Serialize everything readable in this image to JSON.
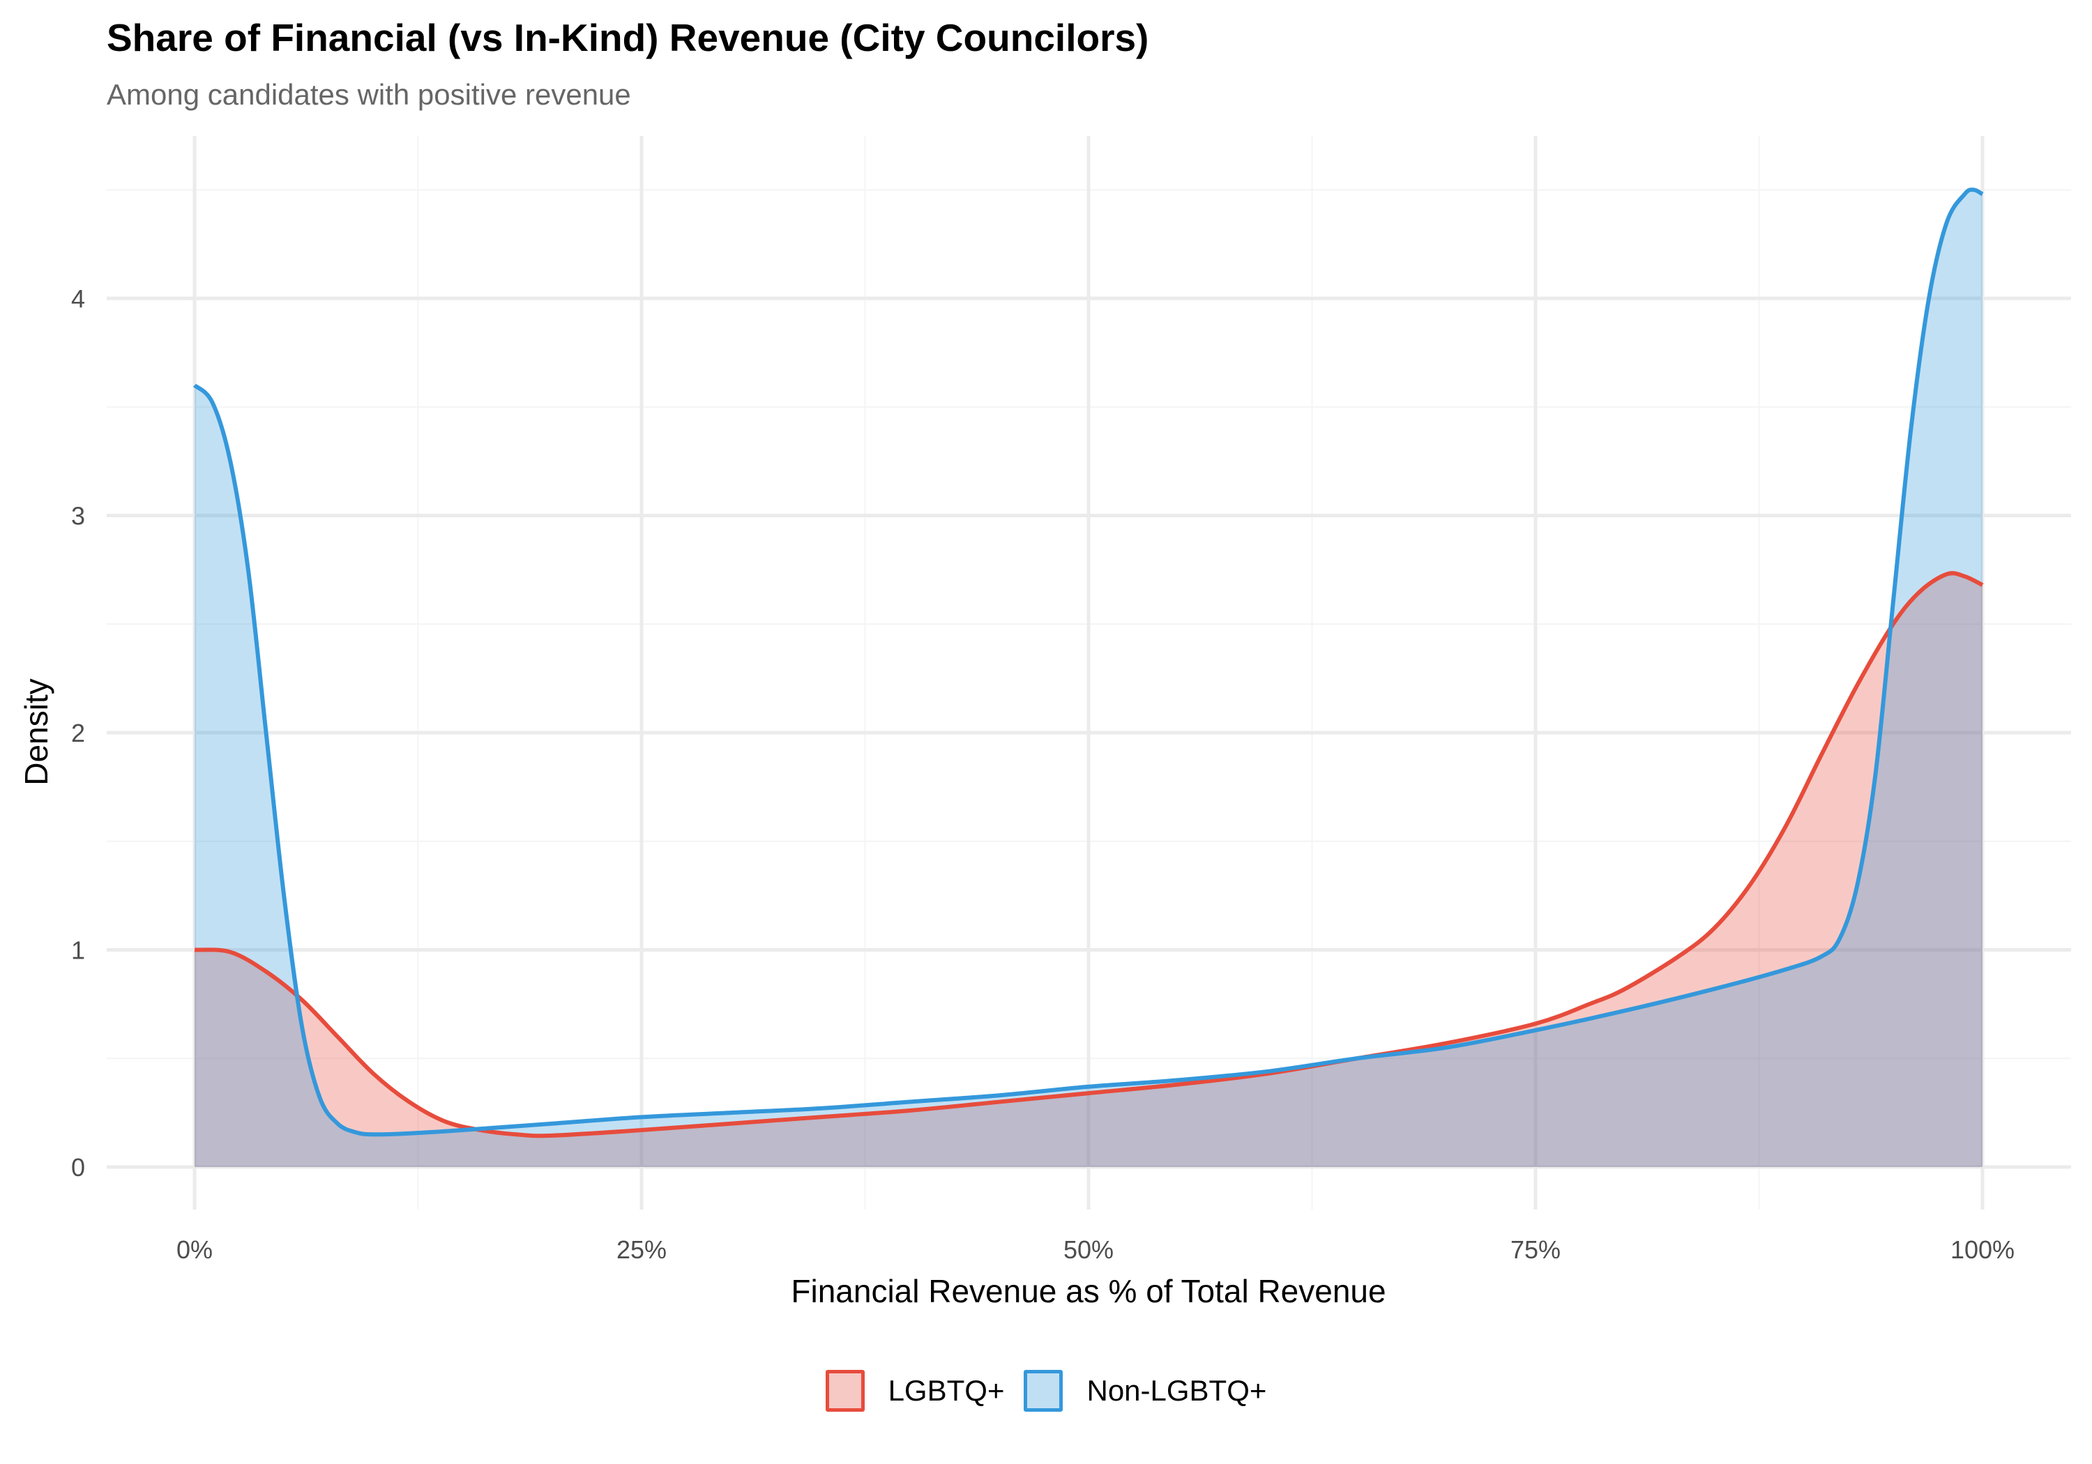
{
  "chart_data": {
    "type": "area",
    "subtype": "density",
    "title": "Share of Financial (vs In-Kind) Revenue (City Councilors)",
    "subtitle": "Among candidates with positive revenue",
    "xlabel": "Financial Revenue as % of Total Revenue",
    "ylabel": "Density",
    "xlim": [
      0,
      100
    ],
    "ylim": [
      0,
      4.5
    ],
    "x_ticks": [
      0,
      25,
      50,
      75,
      100
    ],
    "x_tick_labels": [
      "0%",
      "25%",
      "50%",
      "75%",
      "100%"
    ],
    "y_ticks": [
      0,
      1,
      2,
      3,
      4
    ],
    "y_tick_labels": [
      "0",
      "1",
      "2",
      "3",
      "4"
    ],
    "grid": true,
    "legend_position": "bottom",
    "series": [
      {
        "name": "LGBTQ+",
        "color": "#E74C3C",
        "x": [
          0,
          2,
          4,
          6,
          8,
          10,
          12,
          14,
          16,
          18,
          20,
          25,
          30,
          35,
          40,
          45,
          50,
          55,
          60,
          65,
          70,
          75,
          78,
          80,
          83,
          85,
          87,
          89,
          91,
          93,
          95,
          96.5,
          98,
          99,
          100
        ],
        "y": [
          1.0,
          0.99,
          0.9,
          0.77,
          0.6,
          0.43,
          0.3,
          0.21,
          0.17,
          0.15,
          0.145,
          0.17,
          0.2,
          0.23,
          0.26,
          0.3,
          0.34,
          0.38,
          0.43,
          0.5,
          0.57,
          0.66,
          0.75,
          0.82,
          0.97,
          1.1,
          1.3,
          1.57,
          1.9,
          2.22,
          2.5,
          2.65,
          2.73,
          2.72,
          2.68
        ]
      },
      {
        "name": "Non-LGBTQ+",
        "color": "#3498DB",
        "x": [
          0,
          1,
          2,
          3,
          4,
          5,
          6,
          7,
          8,
          9,
          10,
          12,
          15,
          20,
          25,
          30,
          35,
          40,
          45,
          50,
          55,
          60,
          65,
          70,
          75,
          80,
          85,
          89,
          91,
          92,
          93,
          94,
          95,
          96,
          97,
          98,
          99,
          99.5,
          100
        ],
        "y": [
          3.6,
          3.52,
          3.25,
          2.75,
          2.0,
          1.25,
          0.65,
          0.32,
          0.2,
          0.16,
          0.15,
          0.155,
          0.17,
          0.2,
          0.23,
          0.25,
          0.27,
          0.3,
          0.33,
          0.37,
          0.4,
          0.44,
          0.5,
          0.55,
          0.63,
          0.72,
          0.82,
          0.91,
          0.97,
          1.05,
          1.3,
          1.8,
          2.6,
          3.4,
          4.0,
          4.35,
          4.48,
          4.5,
          4.48
        ]
      }
    ]
  },
  "legend": {
    "items": [
      {
        "label": "LGBTQ+",
        "color": "#E74C3C",
        "fill": "#F6C9C4"
      },
      {
        "label": "Non-LGBTQ+",
        "color": "#3498DB",
        "fill": "#C1DFF3"
      }
    ]
  }
}
